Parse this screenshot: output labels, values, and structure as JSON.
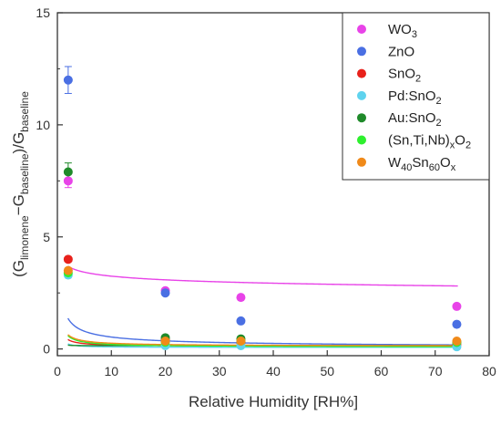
{
  "chart_data": {
    "type": "scatter",
    "title": "",
    "xlabel": "Relative Humidity [RH%]",
    "ylabel": {
      "g1": "(G",
      "s1": "limonene",
      "g2": "−G",
      "s2": "baseline",
      "g3": ")/G",
      "s3": "baseline"
    },
    "xlim": [
      0,
      80
    ],
    "ylim": [
      -0.3,
      15
    ],
    "xticks": [
      0,
      10,
      20,
      30,
      40,
      50,
      60,
      70,
      80
    ],
    "yticks": [
      0,
      5,
      10,
      15
    ],
    "grid": false,
    "legend": "top-right",
    "series": [
      {
        "label_parts": [
          {
            "t": "WO"
          },
          {
            "t": "3",
            "sub": true
          }
        ],
        "color": "#e843e8",
        "points": [
          [
            2,
            7.5
          ],
          [
            20,
            2.6
          ],
          [
            34,
            2.3
          ],
          [
            74,
            1.9
          ]
        ],
        "errors": [
          0.3,
          0,
          0,
          0
        ],
        "fit": [
          2.7,
          0.12,
          1.2
        ]
      },
      {
        "label_parts": [
          {
            "t": "ZnO"
          }
        ],
        "color": "#4a6fe3",
        "points": [
          [
            2,
            12.0
          ],
          [
            20,
            2.5
          ],
          [
            34,
            1.25
          ],
          [
            74,
            1.1
          ]
        ],
        "errors": [
          0.6,
          0,
          0,
          0
        ],
        "fit": [
          2.0,
          0.6,
          0.03
        ]
      },
      {
        "label_parts": [
          {
            "t": "SnO"
          },
          {
            "t": "2",
            "sub": true
          }
        ],
        "color": "#e8211b",
        "points": [
          [
            2,
            4.0
          ],
          [
            20,
            0.4
          ],
          [
            34,
            0.3
          ],
          [
            74,
            0.2
          ]
        ],
        "errors": [
          0,
          0,
          0,
          0
        ],
        "fit": [
          0.58,
          0.98,
          0.12
        ]
      },
      {
        "label_parts": [
          {
            "t": "Pd:SnO"
          },
          {
            "t": "2",
            "sub": true
          }
        ],
        "color": "#5fd3ee",
        "points": [
          [
            2,
            3.3
          ],
          [
            20,
            0.15
          ],
          [
            34,
            0.15
          ],
          [
            74,
            0.1
          ]
        ],
        "errors": [
          0,
          0,
          0,
          0
        ],
        "fit": [
          0.35,
          1.2,
          0.07
        ]
      },
      {
        "label_parts": [
          {
            "t": "Au:SnO"
          },
          {
            "t": "2",
            "sub": true
          }
        ],
        "color": "#1f8a2a",
        "points": [
          [
            2,
            7.9
          ],
          [
            20,
            0.5
          ],
          [
            34,
            0.45
          ],
          [
            74,
            0.3
          ]
        ],
        "errors": [
          0.4,
          0,
          0,
          0
        ],
        "fit": [
          0.12,
          2.7,
          0.15
        ]
      },
      {
        "label_parts": [
          {
            "t": "(Sn,Ti,Nb)"
          },
          {
            "t": "x",
            "sub": true
          },
          {
            "t": "O"
          },
          {
            "t": "2",
            "sub": true
          }
        ],
        "color": "#2ef02e",
        "points": [
          [
            2,
            3.4
          ],
          [
            20,
            0.3
          ],
          [
            34,
            0.35
          ],
          [
            74,
            0.3
          ]
        ],
        "errors": [
          0,
          0,
          0,
          0
        ],
        "fit": [
          0.9,
          0.85,
          0.08
        ]
      },
      {
        "label_parts": [
          {
            "t": "W"
          },
          {
            "t": "40",
            "sub": true
          },
          {
            "t": "Sn"
          },
          {
            "t": "60",
            "sub": true
          },
          {
            "t": "O"
          },
          {
            "t": "x",
            "sub": true
          }
        ],
        "color": "#f08a1a",
        "points": [
          [
            2,
            3.5
          ],
          [
            20,
            0.35
          ],
          [
            34,
            0.35
          ],
          [
            74,
            0.35
          ]
        ],
        "errors": [
          0,
          0,
          0,
          0
        ],
        "fit": [
          0.9,
          0.82,
          0.12
        ]
      }
    ]
  }
}
